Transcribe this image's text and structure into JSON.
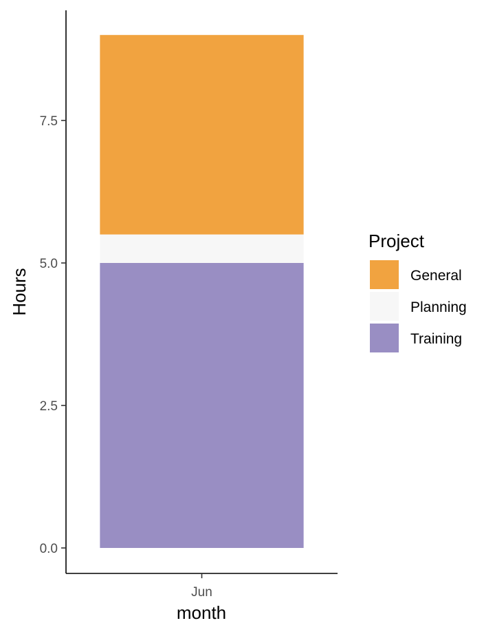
{
  "chart_data": {
    "type": "bar",
    "stacked": true,
    "categories": [
      "Jun"
    ],
    "series": [
      {
        "name": "Training",
        "values": [
          5.0
        ],
        "color": "#998ec3"
      },
      {
        "name": "Planning",
        "values": [
          0.5
        ],
        "color": "#f7f7f7"
      },
      {
        "name": "General",
        "values": [
          3.5
        ],
        "color": "#f1a340"
      }
    ],
    "xlabel": "month",
    "ylabel": "Hours",
    "ylim": [
      0,
      9.45
    ],
    "yticks": [
      {
        "value": 0,
        "label": "0.0"
      },
      {
        "value": 2.5,
        "label": "2.5"
      },
      {
        "value": 5,
        "label": "5.0"
      },
      {
        "value": 7.5,
        "label": "7.5"
      }
    ],
    "grid": false,
    "legend": {
      "title": "Project",
      "placement": "right",
      "entries": [
        {
          "name": "General",
          "color": "#f1a340"
        },
        {
          "name": "Planning",
          "color": "#f7f7f7"
        },
        {
          "name": "Training",
          "color": "#998ec3"
        }
      ]
    }
  }
}
